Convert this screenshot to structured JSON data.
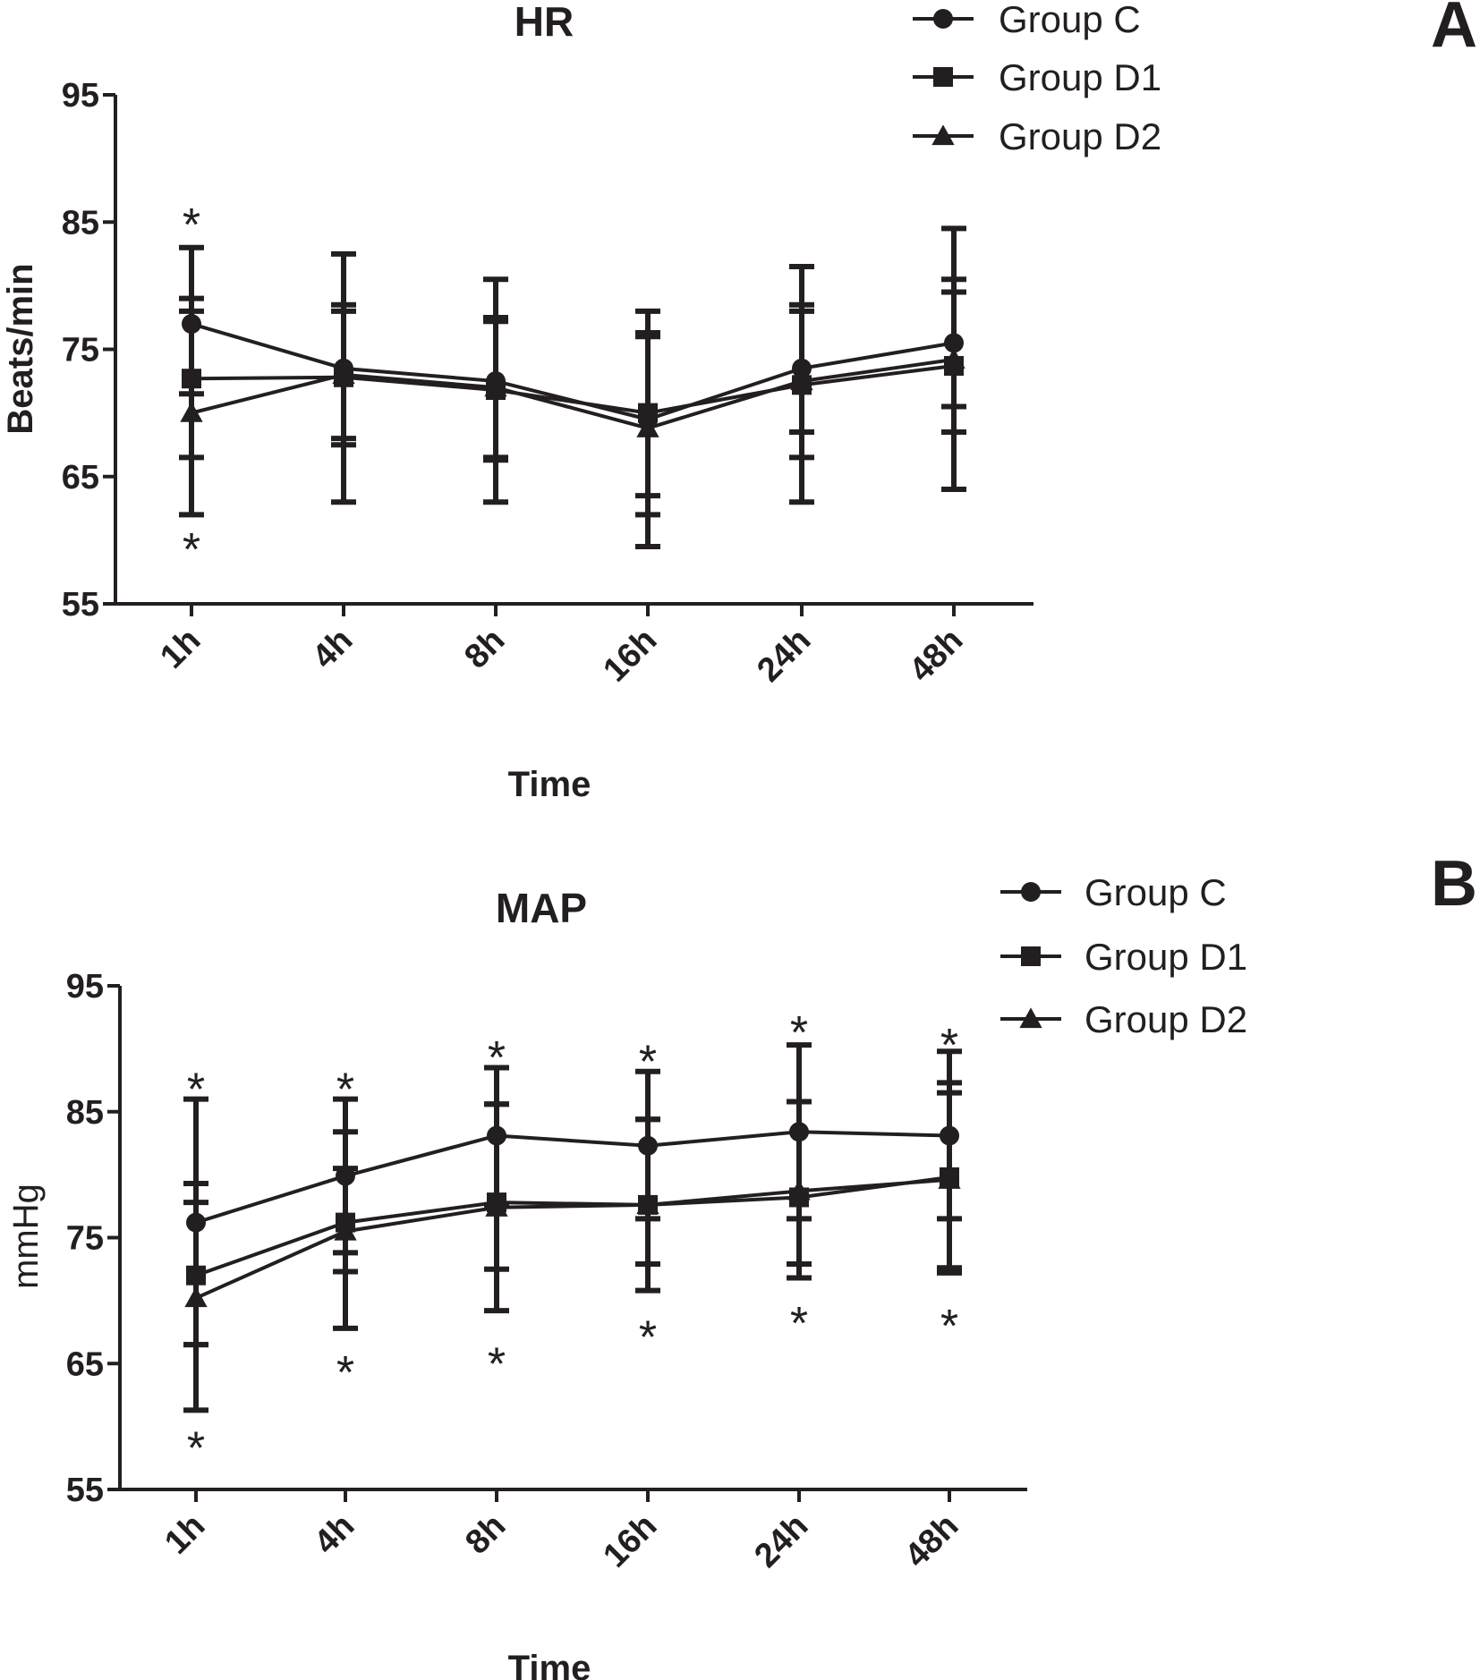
{
  "chart_data": [
    {
      "panel": "A",
      "type": "line",
      "title": "HR",
      "xlabel": "Time",
      "ylabel": "Beats/min",
      "ylabel_bold": true,
      "ylim": [
        55,
        95
      ],
      "yticks": [
        "55",
        "65",
        "75",
        "85",
        "95"
      ],
      "categories": [
        "1h",
        "4h",
        "8h",
        "16h",
        "24h",
        "48h"
      ],
      "series": [
        {
          "name": "Group C",
          "marker": "circle",
          "values": [
            77,
            73.5,
            72.5,
            69.5,
            73.5,
            75.5
          ],
          "upper": [
            83,
            82.5,
            80.5,
            78,
            81.5,
            84.5
          ],
          "lower": [
            71.5,
            67.5,
            66.5,
            62,
            66.5,
            68.5
          ]
        },
        {
          "name": "Group D1",
          "marker": "square",
          "values": [
            72.7,
            72.8,
            71.8,
            70,
            72.2,
            73.7
          ],
          "upper": [
            79,
            78.5,
            77.5,
            76,
            78.5,
            79.5
          ],
          "lower": [
            66.5,
            68,
            63,
            63.5,
            68.5,
            70.5
          ]
        },
        {
          "name": "Group D2",
          "marker": "triangle",
          "values": [
            70,
            73,
            72,
            68.8,
            72.5,
            74.2
          ],
          "upper": [
            78,
            78,
            77.2,
            76.3,
            78,
            80.5
          ],
          "lower": [
            62,
            63,
            66.3,
            59.5,
            63,
            64
          ]
        }
      ],
      "annotations": [
        {
          "text": "*",
          "category": "1h",
          "position": "above",
          "value": 84.8
        },
        {
          "text": "*",
          "category": "1h",
          "position": "below",
          "value": 59.3
        }
      ],
      "legend": "top-right",
      "panel_label": "A"
    },
    {
      "panel": "B",
      "type": "line",
      "title": "MAP",
      "xlabel": "Time",
      "ylabel": "mmHg",
      "ylabel_bold": false,
      "ylim": [
        55,
        95
      ],
      "yticks": [
        "55",
        "65",
        "75",
        "85",
        "95"
      ],
      "categories": [
        "1h",
        "4h",
        "8h",
        "16h",
        "24h",
        "48h"
      ],
      "series": [
        {
          "name": "Group C",
          "marker": "circle",
          "values": [
            76.2,
            79.9,
            83.1,
            82.3,
            83.4,
            83.1
          ],
          "upper": [
            86,
            86,
            88.5,
            88.2,
            90.3,
            89.8
          ],
          "lower": [
            66.5,
            73.8,
            77.6,
            76.5,
            76.5,
            76.5
          ]
        },
        {
          "name": "Group D1",
          "marker": "square",
          "values": [
            72,
            76.2,
            77.8,
            77.6,
            78.2,
            79.8
          ],
          "upper": [
            79.3,
            83.4,
            85.6,
            84.4,
            85.8,
            87.3
          ],
          "lower": [
            66.5,
            67.8,
            69.2,
            70.8,
            71.8,
            72.2
          ]
        },
        {
          "name": "Group D2",
          "marker": "triangle",
          "values": [
            70.2,
            75.5,
            77.4,
            77.6,
            78.7,
            79.6
          ],
          "upper": [
            77.8,
            80.5,
            85.6,
            84.4,
            85.8,
            86.5
          ],
          "lower": [
            61.3,
            72.3,
            72.5,
            72.9,
            72.9,
            72.6
          ]
        }
      ],
      "annotations": [
        {
          "text": "*",
          "category": "1h",
          "position": "above",
          "value": 86.8
        },
        {
          "text": "*",
          "category": "1h",
          "position": "below",
          "value": 58.3
        },
        {
          "text": "*",
          "category": "4h",
          "position": "above",
          "value": 86.8
        },
        {
          "text": "*",
          "category": "4h",
          "position": "below",
          "value": 64.3
        },
        {
          "text": "*",
          "category": "8h",
          "position": "above",
          "value": 89.3
        },
        {
          "text": "*",
          "category": "8h",
          "position": "below",
          "value": 65.0
        },
        {
          "text": "*",
          "category": "16h",
          "position": "above",
          "value": 89.0
        },
        {
          "text": "*",
          "category": "16h",
          "position": "below",
          "value": 67.1
        },
        {
          "text": "*",
          "category": "24h",
          "position": "above",
          "value": 91.3
        },
        {
          "text": "*",
          "category": "24h",
          "position": "below",
          "value": 68.2
        },
        {
          "text": "*",
          "category": "48h",
          "position": "above",
          "value": 90.3
        },
        {
          "text": "*",
          "category": "48h",
          "position": "below",
          "value": 68.0
        }
      ],
      "legend": "top-right",
      "panel_label": "B"
    }
  ],
  "colors": {
    "ink": "#231f20",
    "background": "#ffffff"
  }
}
